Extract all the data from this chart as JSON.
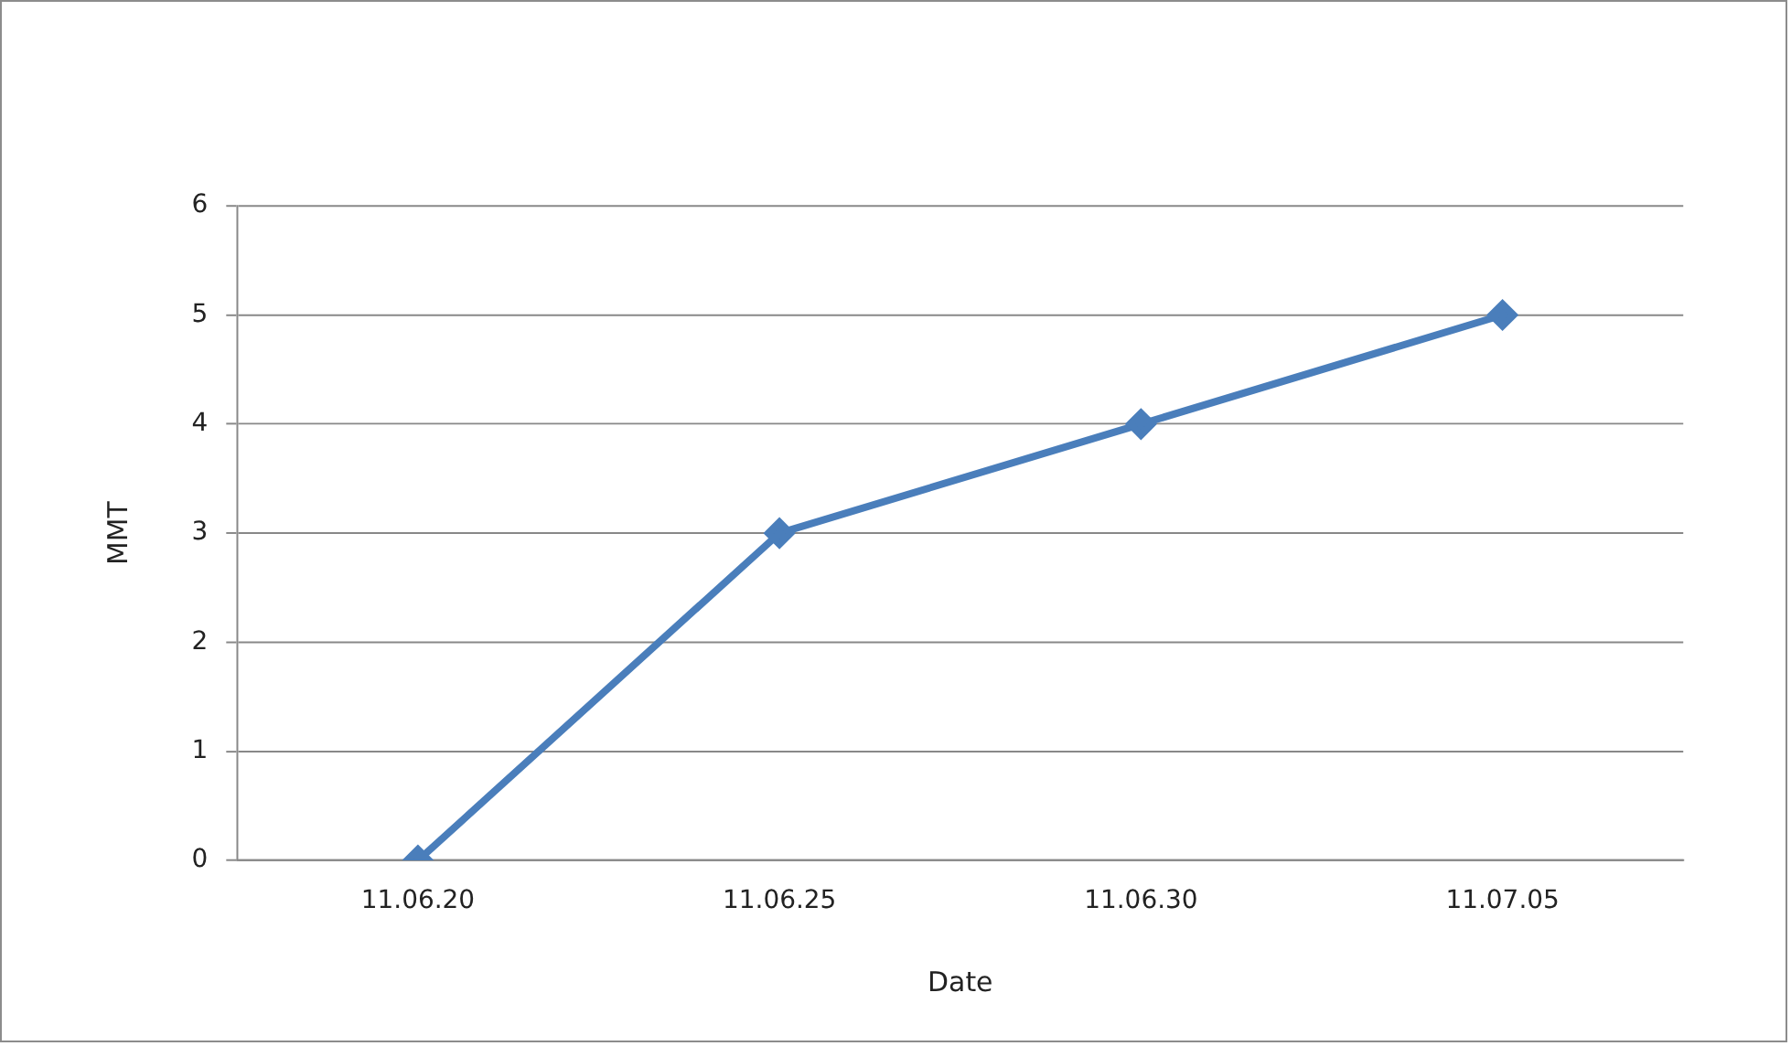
{
  "chart_data": {
    "type": "line",
    "xlabel": "Date",
    "ylabel": "MMT",
    "categories": [
      "11.06.20",
      "11.06.25",
      "11.06.30",
      "11.07.05"
    ],
    "series": [
      {
        "color": "#4a7ebb",
        "values": [
          0,
          3,
          4,
          5
        ]
      }
    ],
    "ylim": [
      0,
      6
    ],
    "yticks": [
      0,
      1,
      2,
      3,
      4,
      5,
      6
    ],
    "grid": "y",
    "legend": false,
    "marker": "diamond",
    "line_style": "solid"
  }
}
